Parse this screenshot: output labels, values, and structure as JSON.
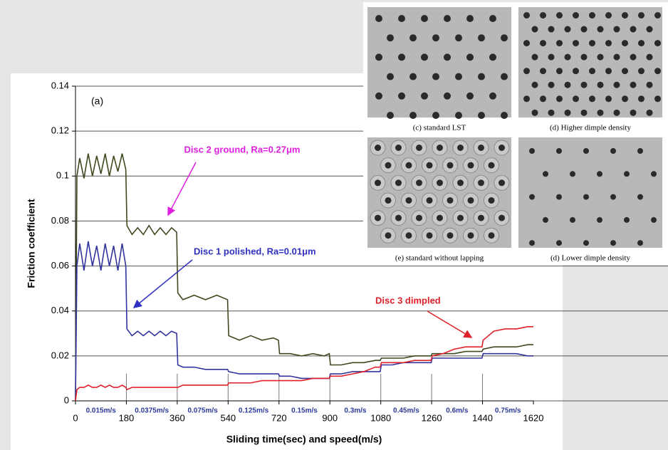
{
  "chart_data": {
    "type": "line",
    "panel_label": "(a)",
    "x_label": "Sliding time(sec) and speed(m/s)",
    "y_label": "Friction coefficient",
    "xlim": [
      0,
      1620
    ],
    "xticks": [
      0,
      180,
      360,
      540,
      720,
      900,
      1080,
      1260,
      1440,
      1620
    ],
    "ylim": [
      0,
      0.14
    ],
    "yticks": [
      0,
      0.02,
      0.04,
      0.06,
      0.08,
      0.1,
      0.12,
      0.14
    ],
    "grid": true,
    "speed_labels": [
      "0.015m/s",
      "0.0375m/s",
      "0.075m/s",
      "0.125m/s",
      "0.15m/s",
      "0.3m/s",
      "0.45m/s",
      "0.6m/s",
      "0.75m/s"
    ],
    "x": [
      0,
      5,
      15,
      30,
      45,
      60,
      75,
      90,
      105,
      120,
      135,
      150,
      165,
      178,
      182,
      200,
      220,
      240,
      260,
      280,
      300,
      320,
      340,
      358,
      362,
      380,
      420,
      460,
      500,
      538,
      542,
      580,
      620,
      660,
      700,
      718,
      722,
      760,
      800,
      840,
      880,
      898,
      902,
      940,
      980,
      1020,
      1060,
      1078,
      1082,
      1120,
      1160,
      1200,
      1240,
      1258,
      1262,
      1300,
      1340,
      1380,
      1420,
      1438,
      1442,
      1480,
      1520,
      1560,
      1600,
      1620
    ],
    "series": [
      {
        "name": "Disc 2 ground",
        "color": "#3d4a1e",
        "values": [
          0,
          0.1,
          0.108,
          0.099,
          0.11,
          0.1,
          0.109,
          0.101,
          0.11,
          0.1,
          0.109,
          0.102,
          0.11,
          0.103,
          0.078,
          0.074,
          0.077,
          0.074,
          0.078,
          0.074,
          0.077,
          0.074,
          0.077,
          0.075,
          0.048,
          0.045,
          0.047,
          0.045,
          0.047,
          0.045,
          0.029,
          0.027,
          0.029,
          0.027,
          0.028,
          0.027,
          0.021,
          0.021,
          0.02,
          0.021,
          0.02,
          0.021,
          0.016,
          0.016,
          0.017,
          0.017,
          0.018,
          0.018,
          0.019,
          0.019,
          0.019,
          0.02,
          0.02,
          0.02,
          0.021,
          0.021,
          0.021,
          0.022,
          0.022,
          0.022,
          0.023,
          0.024,
          0.024,
          0.024,
          0.025,
          0.025
        ]
      },
      {
        "name": "Disc 1 polished",
        "color": "#33339e",
        "values": [
          0,
          0.06,
          0.07,
          0.058,
          0.071,
          0.06,
          0.069,
          0.058,
          0.07,
          0.06,
          0.069,
          0.058,
          0.07,
          0.06,
          0.032,
          0.029,
          0.031,
          0.029,
          0.031,
          0.029,
          0.031,
          0.029,
          0.031,
          0.03,
          0.016,
          0.015,
          0.015,
          0.014,
          0.014,
          0.014,
          0.013,
          0.012,
          0.012,
          0.012,
          0.012,
          0.012,
          0.011,
          0.011,
          0.01,
          0.01,
          0.01,
          0.01,
          0.012,
          0.012,
          0.013,
          0.013,
          0.013,
          0.013,
          0.016,
          0.016,
          0.017,
          0.017,
          0.017,
          0.017,
          0.019,
          0.019,
          0.019,
          0.019,
          0.019,
          0.019,
          0.021,
          0.021,
          0.021,
          0.021,
          0.02,
          0.02
        ]
      },
      {
        "name": "Disc 3 dimpled",
        "color": "#e0202a",
        "values": [
          0,
          0.005,
          0.006,
          0.006,
          0.007,
          0.006,
          0.006,
          0.007,
          0.006,
          0.007,
          0.006,
          0.006,
          0.007,
          0.006,
          0.005,
          0.006,
          0.006,
          0.006,
          0.006,
          0.006,
          0.006,
          0.006,
          0.006,
          0.006,
          0.006,
          0.007,
          0.007,
          0.007,
          0.007,
          0.007,
          0.008,
          0.008,
          0.008,
          0.009,
          0.009,
          0.009,
          0.009,
          0.009,
          0.009,
          0.01,
          0.01,
          0.01,
          0.011,
          0.011,
          0.012,
          0.013,
          0.015,
          0.015,
          0.017,
          0.017,
          0.017,
          0.018,
          0.018,
          0.018,
          0.02,
          0.021,
          0.023,
          0.024,
          0.024,
          0.024,
          0.027,
          0.031,
          0.032,
          0.032,
          0.033,
          0.033
        ]
      }
    ],
    "annotations": [
      {
        "text": "Disc 2 ground, Ra=0.27μm",
        "color": "#e020e0"
      },
      {
        "text": "Disc 1 polished, Ra=0.01μm",
        "color": "#3030c0"
      },
      {
        "text": "Disc 3 dimpled",
        "color": "#e0202a"
      }
    ]
  },
  "micrographs": [
    "(c) standard LST",
    "(d) Higher dimple density",
    "(e) standard without lapping",
    "(d) Lower dimple density"
  ]
}
